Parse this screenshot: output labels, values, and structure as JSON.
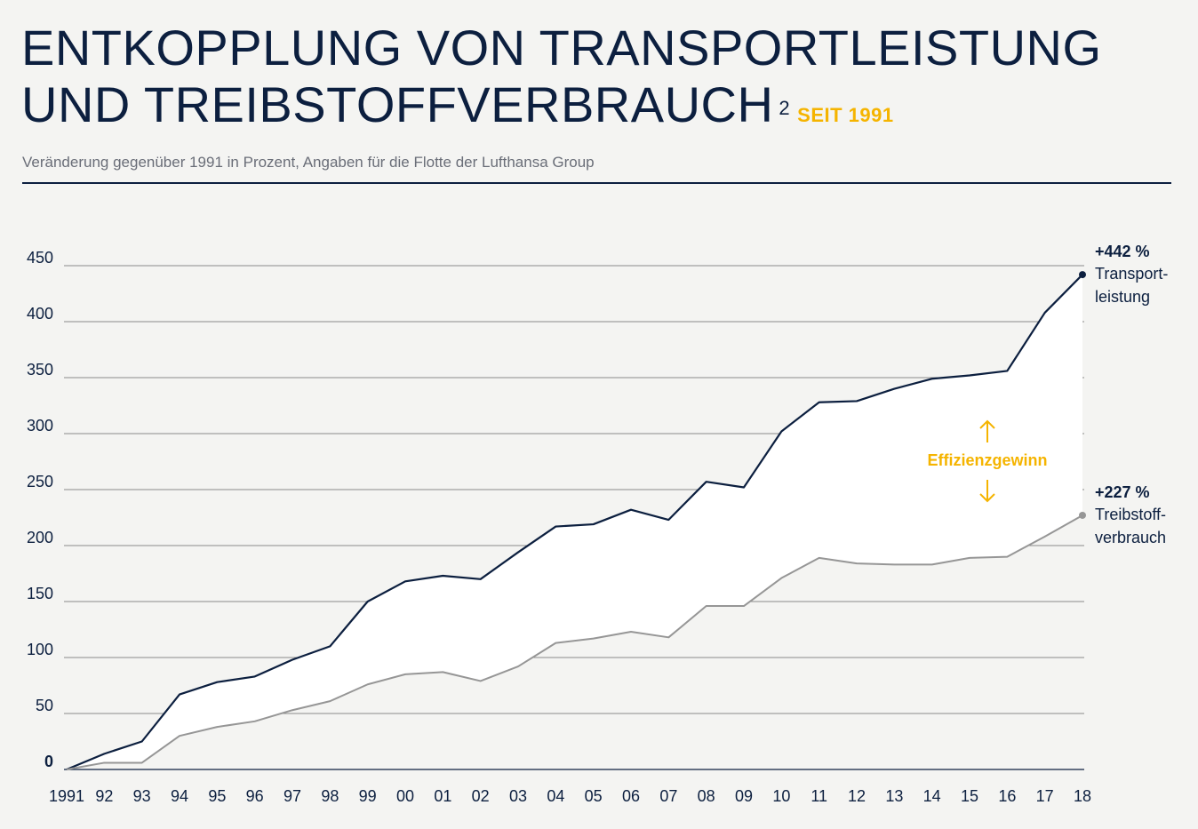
{
  "header": {
    "title_line1": "ENTKOPPLUNG VON TRANSPORTLEISTUNG",
    "title_line2": "UND TREIBSTOFFVERBRAUCH",
    "footnote": "2",
    "since": "SEIT 1991",
    "subtitle": "Veränderung gegenüber 1991 in Prozent, Angaben für die Flotte der Lufthansa Group"
  },
  "chart_data": {
    "type": "area",
    "title": "ENTKOPPLUNG VON TRANSPORTLEISTUNG UND TREIBSTOFFVERBRAUCH SEIT 1991",
    "ylabel": "",
    "xlabel": "",
    "ylim": [
      0,
      450
    ],
    "yticks": [
      0,
      50,
      100,
      150,
      200,
      250,
      300,
      350,
      400,
      450
    ],
    "categories": [
      "1991",
      "92",
      "93",
      "94",
      "95",
      "96",
      "97",
      "98",
      "99",
      "00",
      "01",
      "02",
      "03",
      "04",
      "05",
      "06",
      "07",
      "08",
      "09",
      "10",
      "11",
      "12",
      "13",
      "14",
      "15",
      "16",
      "17",
      "18"
    ],
    "grid": true,
    "series": [
      {
        "name": "Transport-leistung",
        "end_label": "+442 %",
        "label_lines": [
          "Transport-",
          "leistung"
        ],
        "color": "#0c1f3f",
        "values": [
          0,
          14,
          25,
          67,
          78,
          83,
          98,
          110,
          150,
          168,
          173,
          170,
          194,
          217,
          219,
          232,
          223,
          257,
          252,
          302,
          328,
          329,
          340,
          349,
          352,
          356,
          408,
          442
        ]
      },
      {
        "name": "Treibstoff-verbrauch",
        "end_label": "+227 %",
        "label_lines": [
          "Treibstoff-",
          "verbrauch"
        ],
        "color": "#969696",
        "values": [
          0,
          6,
          6,
          30,
          38,
          43,
          53,
          61,
          76,
          85,
          87,
          79,
          92,
          113,
          117,
          123,
          118,
          146,
          146,
          171,
          189,
          184,
          183,
          183,
          189,
          190,
          208,
          227
        ]
      }
    ],
    "annotation": "Effizienzgewinn",
    "annotation_color": "#f5b400",
    "fill_between_color": "#ffffff"
  }
}
